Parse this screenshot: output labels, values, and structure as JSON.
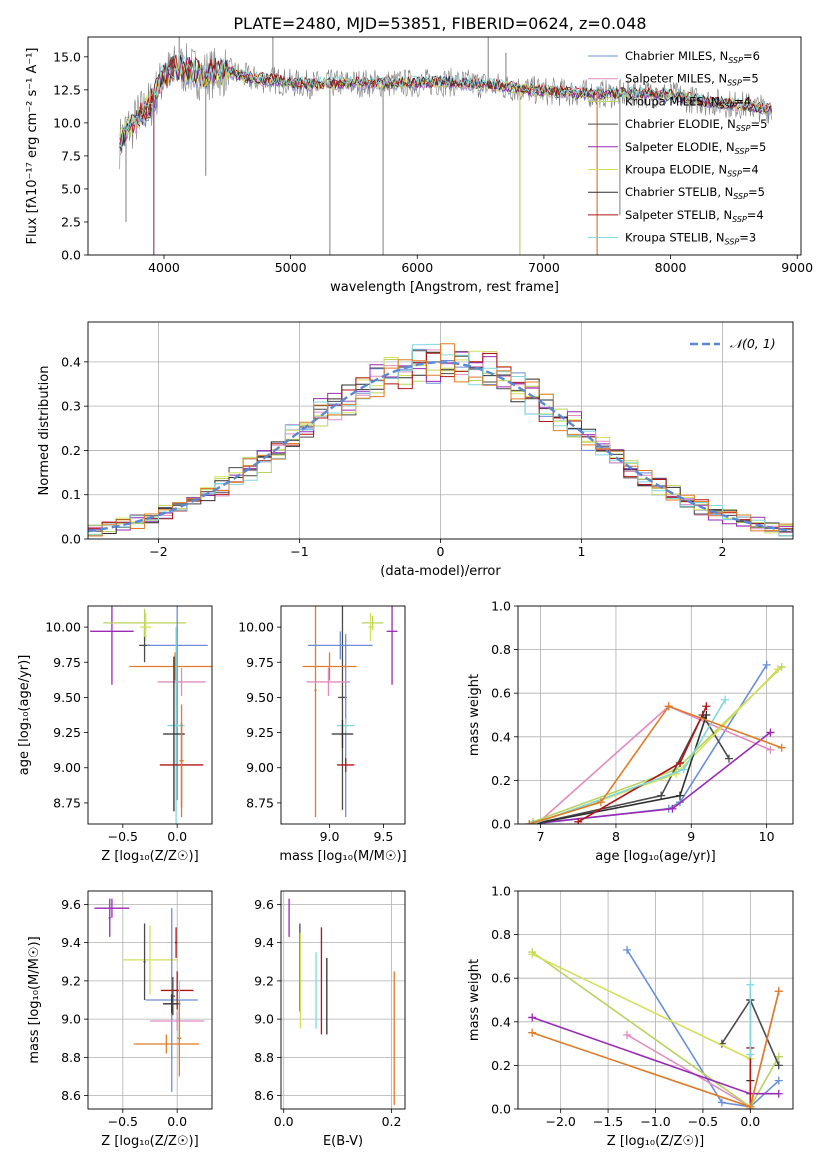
{
  "figure": {
    "title": "PLATE=2480, MJD=53851, FIBERID=0624, z=0.048"
  },
  "colors": {
    "chabrier_miles": "#6a8fd8",
    "salpeter_miles": "#e38bbf",
    "kroupa_miles": "#b9d35e",
    "chabrier_elodie": "#4a4a4a",
    "salpeter_elodie": "#9a2ab5",
    "kroupa_elodie": "#d4e05a",
    "chabrier_stelib": "#2f2f2f",
    "salpeter_stelib": "#b01515",
    "kroupa_stelib": "#80d8dc",
    "orange": "#e07b28",
    "gray": "#7f7f7f",
    "grid": "#b0b0b0"
  },
  "chart_data": [
    {
      "id": "spectrum",
      "type": "line",
      "xlabel": "wavelength [Angstrom, rest frame]",
      "ylabel": "Flux [fλ10⁻¹⁷ erg cm⁻² s⁻¹ A⁻¹]",
      "xlim": [
        3400,
        9030
      ],
      "ylim": [
        0,
        16.5
      ],
      "xticks": [
        "4000",
        "5000",
        "6000",
        "7000",
        "8000",
        "9000"
      ],
      "yticks": [
        "0.0",
        "2.5",
        "5.0",
        "7.5",
        "10.0",
        "12.5",
        "15.0"
      ],
      "legend_position": "upper-right",
      "legend": [
        {
          "label": "Chabrier MILES, N",
          "sub": "SSP",
          "suffix": "=6",
          "color": "#6a8fd8"
        },
        {
          "label": "Salpeter MILES, N",
          "sub": "SSP",
          "suffix": "=5",
          "color": "#e38bbf"
        },
        {
          "label": "Kroupa MILES, N",
          "sub": "SSP",
          "suffix": "=4",
          "color": "#b9d35e"
        },
        {
          "label": "Chabrier ELODIE, N",
          "sub": "SSP",
          "suffix": "=5",
          "color": "#4a4a4a"
        },
        {
          "label": "Salpeter ELODIE, N",
          "sub": "SSP",
          "suffix": "=5",
          "color": "#9a2ab5"
        },
        {
          "label": "Kroupa ELODIE, N",
          "sub": "SSP",
          "suffix": "=4",
          "color": "#d4e05a"
        },
        {
          "label": "Chabrier STELIB, N",
          "sub": "SSP",
          "suffix": "=5",
          "color": "#2f2f2f"
        },
        {
          "label": "Salpeter STELIB, N",
          "sub": "SSP",
          "suffix": "=4",
          "color": "#b01515"
        },
        {
          "label": "Kroupa STELIB, N",
          "sub": "SSP",
          "suffix": "=3",
          "color": "#80d8dc"
        }
      ],
      "continuum": {
        "x": [
          3650,
          3700,
          3750,
          3800,
          3850,
          3900,
          3950,
          4000,
          4100,
          4200,
          4300,
          4400,
          4500,
          4600,
          4700,
          4800,
          4900,
          5000,
          5200,
          5400,
          5600,
          5800,
          6000,
          6200,
          6400,
          6600,
          6800,
          7000,
          7200,
          7400,
          7600,
          7800,
          8000,
          8200,
          8400,
          8600,
          8800
        ],
        "y": [
          8.5,
          9.5,
          9.8,
          10.5,
          11.0,
          11.5,
          12.5,
          13.5,
          14.2,
          14.0,
          13.6,
          13.8,
          13.9,
          13.6,
          13.3,
          13.3,
          13.2,
          13.0,
          12.9,
          13.0,
          13.0,
          13.0,
          13.0,
          13.1,
          13.0,
          12.8,
          12.6,
          12.4,
          12.3,
          12.2,
          12.2,
          12.2,
          12.1,
          11.7,
          11.5,
          11.3,
          11.0
        ]
      },
      "observed_spikes": [
        {
          "x": 3700,
          "y": 2.5
        },
        {
          "x": 3920,
          "y": 0
        },
        {
          "x": 4120,
          "y": 16.5
        },
        {
          "x": 4330,
          "y": 6.0
        },
        {
          "x": 4860,
          "y": 16.5
        },
        {
          "x": 5310,
          "y": 0
        },
        {
          "x": 5730,
          "y": 0
        },
        {
          "x": 6560,
          "y": 16.5
        },
        {
          "x": 6700,
          "y": 15.3
        },
        {
          "x": 6810,
          "y": 0
        },
        {
          "x": 7420,
          "y": 0
        },
        {
          "x": 7600,
          "y": 3.0
        }
      ]
    },
    {
      "id": "residuals",
      "type": "histogram",
      "xlabel": "(data-model)/error",
      "ylabel": "Normed distribution",
      "xlim": [
        -2.5,
        2.5
      ],
      "ylim": [
        0,
        0.49
      ],
      "xticks": [
        "−2",
        "−1",
        "0",
        "1",
        "2"
      ],
      "yticks": [
        "0.0",
        "0.1",
        "0.2",
        "0.3",
        "0.4"
      ],
      "legend_position": "upper-right",
      "legend": [
        {
          "label": "𝒩(0, 1)",
          "color": "#5a88d4"
        }
      ],
      "bin_width": 0.1
    },
    {
      "id": "age_vs_Z",
      "type": "errorbar",
      "xlabel": "Z [log₁₀(Z/Z☉)]",
      "ylabel": "age  [log₁₀(age/yr)]",
      "xlim": [
        -0.82,
        0.32
      ],
      "ylim": [
        8.6,
        10.15
      ],
      "xticks": [
        "−0.5",
        "0.0"
      ],
      "yticks": [
        "8.75",
        "9.00",
        "9.25",
        "9.50",
        "9.75",
        "10.00"
      ],
      "points": [
        {
          "x": -0.3,
          "xerr": 0.05,
          "y": 9.87,
          "yerr": 0.12,
          "color": "#4a4a4a"
        },
        {
          "x": -0.6,
          "xerr": 0.2,
          "y": 9.97,
          "yerr": 0.38,
          "color": "#9a2ab5"
        },
        {
          "x": -0.3,
          "xerr": 0.38,
          "y": 10.03,
          "yerr": 0.1,
          "color": "#b9d35e"
        },
        {
          "x": -0.29,
          "xerr": 0.05,
          "y": 10.0,
          "yerr": 0.1,
          "color": "#d4e05a"
        },
        {
          "x": 0.0,
          "xerr": 0.28,
          "y": 9.87,
          "yerr": 1.1,
          "color": "#6a8fd8"
        },
        {
          "x": -0.02,
          "xerr": 0.42,
          "y": 9.72,
          "yerr": 0.1,
          "color": "#e07b28"
        },
        {
          "x": 0.04,
          "xerr": 0.22,
          "y": 9.61,
          "yerr": 0.1,
          "color": "#e38bbf"
        },
        {
          "x": -0.01,
          "xerr": 0.08,
          "y": 9.3,
          "yerr": 0.7,
          "color": "#80d8dc"
        },
        {
          "x": -0.03,
          "xerr": 0.1,
          "y": 9.24,
          "yerr": 0.55,
          "color": "#2f2f2f"
        },
        {
          "x": 0.04,
          "xerr": 0.2,
          "y": 9.02,
          "yerr": 0.3,
          "color": "#b01515"
        },
        {
          "x": 0.04,
          "xerr": 0.02,
          "y": 9.05,
          "yerr": 0.4,
          "color": "#e07b28"
        }
      ]
    },
    {
      "id": "age_vs_mass",
      "type": "errorbar",
      "xlabel": "mass [log₁₀(M/M☉)]",
      "ylabel": "",
      "xlim": [
        8.55,
        9.7
      ],
      "ylim": [
        8.6,
        10.15
      ],
      "xticks": [
        "9.0",
        "9.5"
      ],
      "yticks": [
        "8.75",
        "9.00",
        "9.25",
        "9.50",
        "9.75",
        "10.00"
      ],
      "points": [
        {
          "x": 8.87,
          "xerr": 0.01,
          "y": 9.55,
          "yerr": 0.9,
          "color": "#e07b28"
        },
        {
          "x": 9.12,
          "xerr": 0.04,
          "y": 9.5,
          "yerr": 0.8,
          "color": "#4a4a4a"
        },
        {
          "x": 9.1,
          "xerr": 0.3,
          "y": 9.87,
          "yerr": 0.1,
          "color": "#6a8fd8"
        },
        {
          "x": 9.15,
          "xerr": 0.01,
          "y": 9.3,
          "yerr": 0.65,
          "color": "#6a8fd8"
        },
        {
          "x": 9.0,
          "xerr": 0.25,
          "y": 9.72,
          "yerr": 0.1,
          "color": "#e07b28"
        },
        {
          "x": 8.99,
          "xerr": 0.2,
          "y": 9.61,
          "yerr": 0.1,
          "color": "#e38bbf"
        },
        {
          "x": 9.15,
          "xerr": 0.08,
          "y": 9.3,
          "yerr": 0.05,
          "color": "#80d8dc"
        },
        {
          "x": 9.12,
          "xerr": 0.1,
          "y": 9.24,
          "yerr": 0.1,
          "color": "#2f2f2f"
        },
        {
          "x": 9.15,
          "xerr": 0.08,
          "y": 9.02,
          "yerr": 0.05,
          "color": "#b01515"
        },
        {
          "x": 9.4,
          "xerr": 0.1,
          "y": 10.03,
          "yerr": 0.05,
          "color": "#b9d35e"
        },
        {
          "x": 9.38,
          "xerr": 0.02,
          "y": 10.0,
          "yerr": 0.1,
          "color": "#d4e05a"
        },
        {
          "x": 9.58,
          "xerr": 0.05,
          "y": 9.97,
          "yerr": 0.38,
          "color": "#9a2ab5"
        }
      ]
    },
    {
      "id": "mass_weight_vs_age",
      "type": "line",
      "xlabel": "age  [log₁₀(age/yr)]",
      "ylabel": "mass weight",
      "xlim": [
        6.7,
        10.35
      ],
      "ylim": [
        0,
        1.0
      ],
      "xticks": [
        "7",
        "8",
        "9",
        "10"
      ],
      "yticks": [
        "0.0",
        "0.2",
        "0.4",
        "0.6",
        "0.8",
        "1.0"
      ],
      "series": [
        {
          "color": "#6a8fd8",
          "x": [
            6.9,
            8.7,
            8.85,
            10.0
          ],
          "y": [
            0.0,
            0.07,
            0.1,
            0.73
          ]
        },
        {
          "color": "#e38bbf",
          "x": [
            6.95,
            8.7,
            10.05
          ],
          "y": [
            0.0,
            0.54,
            0.34
          ]
        },
        {
          "color": "#b9d35e",
          "x": [
            6.9,
            8.8,
            10.2
          ],
          "y": [
            0.01,
            0.25,
            0.72
          ]
        },
        {
          "color": "#4a4a4a",
          "x": [
            6.9,
            8.6,
            9.15,
            9.5
          ],
          "y": [
            0.0,
            0.13,
            0.5,
            0.3
          ]
        },
        {
          "color": "#9a2ab5",
          "x": [
            6.85,
            8.75,
            10.05
          ],
          "y": [
            0.0,
            0.07,
            0.42
          ]
        },
        {
          "color": "#d4e05a",
          "x": [
            6.9,
            8.8,
            10.15
          ],
          "y": [
            0.0,
            0.23,
            0.71
          ]
        },
        {
          "color": "#2f2f2f",
          "x": [
            6.9,
            8.85,
            9.2
          ],
          "y": [
            0.0,
            0.13,
            0.5
          ]
        },
        {
          "color": "#b01515",
          "x": [
            7.5,
            8.85,
            9.2
          ],
          "y": [
            0.01,
            0.28,
            0.54
          ]
        },
        {
          "color": "#80d8dc",
          "x": [
            6.9,
            8.9,
            9.45
          ],
          "y": [
            0.0,
            0.25,
            0.57
          ]
        },
        {
          "color": "#e07b28",
          "x": [
            6.85,
            7.8,
            8.7,
            10.2
          ],
          "y": [
            0.0,
            0.1,
            0.54,
            0.35
          ]
        }
      ]
    },
    {
      "id": "mass_vs_Z",
      "type": "errorbar",
      "xlabel": "Z [log₁₀(Z/Z☉)]",
      "ylabel": "mass [log₁₀(M/M☉)]",
      "xlim": [
        -0.82,
        0.32
      ],
      "ylim": [
        8.53,
        9.67
      ],
      "xticks": [
        "−0.5",
        "0.0"
      ],
      "yticks": [
        "8.6",
        "8.8",
        "9.0",
        "9.2",
        "9.4",
        "9.6"
      ],
      "points": [
        {
          "x": -0.6,
          "xerr": 0.16,
          "y": 9.58,
          "yerr": 0.05,
          "color": "#9a2ab5"
        },
        {
          "x": -0.62,
          "xerr": 0.01,
          "y": 9.53,
          "yerr": 0.1,
          "color": "#9a2ab5"
        },
        {
          "x": -0.25,
          "xerr": 0.25,
          "y": 9.31,
          "yerr": 0.18,
          "color": "#d4e05a"
        },
        {
          "x": -0.3,
          "xerr": 0.01,
          "y": 9.3,
          "yerr": 0.2,
          "color": "#4a4a4a"
        },
        {
          "x": -0.05,
          "xerr": 0.24,
          "y": 9.1,
          "yerr": 0.48,
          "color": "#6a8fd8"
        },
        {
          "x": 0.0,
          "xerr": 0.15,
          "y": 9.15,
          "yerr": 0.1,
          "color": "#b01515"
        },
        {
          "x": -0.05,
          "xerr": 0.08,
          "y": 9.08,
          "yerr": 0.05,
          "color": "#2f2f2f"
        },
        {
          "x": -0.04,
          "xerr": 0.02,
          "y": 9.12,
          "yerr": 0.1,
          "color": "#4a4a4a"
        },
        {
          "x": 0.0,
          "xerr": 0.25,
          "y": 8.99,
          "yerr": 0.05,
          "color": "#e38bbf"
        },
        {
          "x": 0.02,
          "xerr": 0.01,
          "y": 9.0,
          "yerr": 0.2,
          "color": "#80d8dc"
        },
        {
          "x": 0.02,
          "xerr": 0.02,
          "y": 8.9,
          "yerr": 0.2,
          "color": "#e07b28"
        },
        {
          "x": -0.1,
          "xerr": 0.3,
          "y": 8.87,
          "yerr": 0.05,
          "color": "#e07b28"
        },
        {
          "x": -0.01,
          "xerr": 0.01,
          "y": 9.4,
          "yerr": 0.08,
          "color": "#b01515"
        }
      ]
    },
    {
      "id": "mass_vs_ebv",
      "type": "errorbar",
      "xlabel": "E(B-V)",
      "ylabel": "",
      "xlim": [
        -0.005,
        0.225
      ],
      "ylim": [
        8.53,
        9.67
      ],
      "xticks": [
        "0.0",
        "0.2"
      ],
      "yticks": [
        "8.6",
        "8.8",
        "9.0",
        "9.2",
        "9.4",
        "9.6"
      ],
      "points": [
        {
          "x": 0.01,
          "xerr": 0,
          "y": 9.53,
          "yerr": 0.1,
          "color": "#9a2ab5"
        },
        {
          "x": 0.03,
          "xerr": 0,
          "y": 9.27,
          "yerr": 0.23,
          "color": "#4a4a4a"
        },
        {
          "x": 0.031,
          "xerr": 0,
          "y": 9.2,
          "yerr": 0.25,
          "color": "#d4e05a"
        },
        {
          "x": 0.06,
          "xerr": 0,
          "y": 9.15,
          "yerr": 0.2,
          "color": "#80d8dc"
        },
        {
          "x": 0.07,
          "xerr": 0,
          "y": 9.2,
          "yerr": 0.28,
          "color": "#b01515"
        },
        {
          "x": 0.08,
          "xerr": 0,
          "y": 9.12,
          "yerr": 0.2,
          "color": "#2f2f2f"
        },
        {
          "x": 0.205,
          "xerr": 0,
          "y": 8.9,
          "yerr": 0.35,
          "color": "#e07b28"
        }
      ]
    },
    {
      "id": "mass_weight_vs_Z",
      "type": "line",
      "xlabel": "Z [log₁₀(Z/Z☉)]",
      "ylabel": "mass weight",
      "xlim": [
        -2.45,
        0.45
      ],
      "ylim": [
        0,
        1.0
      ],
      "xticks": [
        "−2.0",
        "−1.5",
        "−1.0",
        "−0.5",
        "0.0"
      ],
      "yticks": [
        "0.0",
        "0.2",
        "0.4",
        "0.6",
        "0.8",
        "1.0"
      ],
      "series": [
        {
          "color": "#6a8fd8",
          "x": [
            -1.3,
            -0.3,
            0.0,
            0.3
          ],
          "y": [
            0.73,
            0.03,
            0.01,
            0.13
          ]
        },
        {
          "color": "#e38bbf",
          "x": [
            -1.3,
            0.0,
            0.3
          ],
          "y": [
            0.34,
            0.01,
            0.54
          ]
        },
        {
          "color": "#b9d35e",
          "x": [
            -2.3,
            0.0,
            0.3
          ],
          "y": [
            0.72,
            0.01,
            0.24
          ]
        },
        {
          "color": "#4a4a4a",
          "x": [
            -0.3,
            0.0,
            0.3
          ],
          "y": [
            0.3,
            0.5,
            0.2
          ]
        },
        {
          "color": "#9a2ab5",
          "x": [
            -2.3,
            0.0,
            0.3
          ],
          "y": [
            0.42,
            0.07,
            0.07
          ]
        },
        {
          "color": "#d4e05a",
          "x": [
            -2.3,
            0.0
          ],
          "y": [
            0.71,
            0.23
          ]
        },
        {
          "color": "#2f2f2f",
          "x": [
            0.0,
            0.0
          ],
          "y": [
            0.5,
            0.13
          ]
        },
        {
          "color": "#b01515",
          "x": [
            0.0,
            0.0
          ],
          "y": [
            0.28,
            0.0
          ]
        },
        {
          "color": "#80d8dc",
          "x": [
            0.0,
            0.0
          ],
          "y": [
            0.57,
            0.25
          ]
        },
        {
          "color": "#e07b28",
          "x": [
            -2.3,
            0.0,
            0.3
          ],
          "y": [
            0.35,
            0.01,
            0.54
          ]
        }
      ]
    }
  ]
}
